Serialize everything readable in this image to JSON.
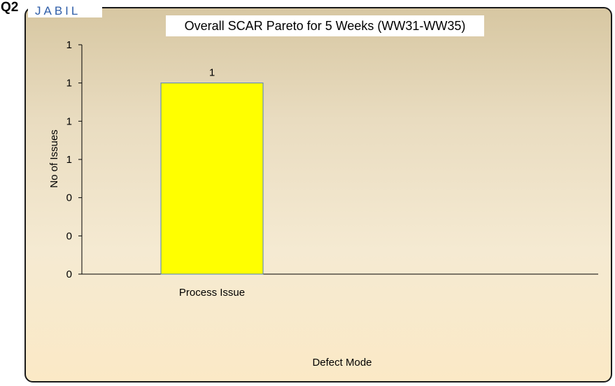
{
  "slide": {
    "label": "Q2",
    "logo": "JABIL"
  },
  "chart_data": {
    "type": "bar",
    "title": "Overall SCAR Pareto for 5 Weeks (WW31-WW35)",
    "categories": [
      "Process Issue"
    ],
    "values": [
      1
    ],
    "data_labels": [
      "1"
    ],
    "xlabel": "Defect Mode",
    "ylabel": "No of Issues",
    "y_tick_labels": [
      "0",
      "0",
      "0",
      "1",
      "1",
      "1",
      "1"
    ],
    "ylim": [
      0,
      1.2
    ],
    "bar_color": "#ffff00",
    "bar_edge_color": "#4f81bd",
    "grid": false,
    "legend": "none"
  }
}
